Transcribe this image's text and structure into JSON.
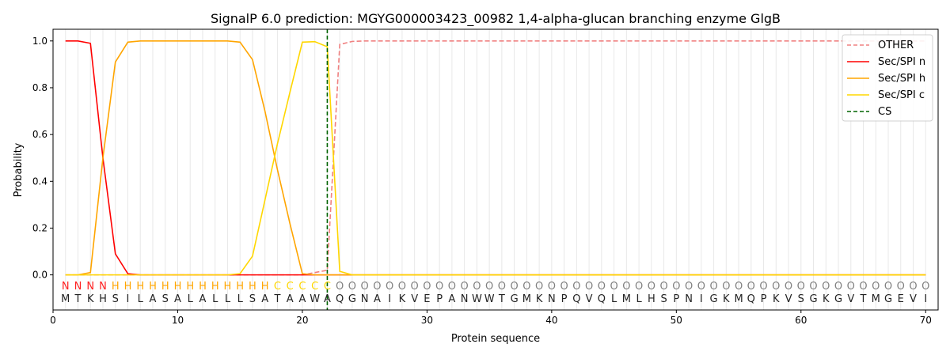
{
  "chart_data": {
    "type": "line",
    "title": "SignalP 6.0 prediction: MGYG000003423_00982 1,4-alpha-glucan branching enzyme GlgB",
    "xlabel": "Protein sequence",
    "ylabel": "Probability",
    "xlim": [
      0,
      71
    ],
    "ylim": [
      -0.15,
      1.05
    ],
    "xticks": [
      0,
      10,
      20,
      30,
      40,
      50,
      60,
      70
    ],
    "yticks": [
      "0.0",
      "0.2",
      "0.4",
      "0.6",
      "0.8",
      "1.0"
    ],
    "grid": "vertical lines at each residue",
    "legend_placement": "top-right",
    "sequence": [
      "M",
      "T",
      "K",
      "H",
      "S",
      "I",
      "L",
      "A",
      "S",
      "A",
      "L",
      "A",
      "L",
      "L",
      "L",
      "S",
      "A",
      "T",
      "A",
      "A",
      "W",
      "A",
      "Q",
      "G",
      "N",
      "A",
      "I",
      "K",
      "V",
      "E",
      "P",
      "A",
      "N",
      "W",
      "W",
      "T",
      "G",
      "M",
      "K",
      "N",
      "P",
      "Q",
      "V",
      "Q",
      "L",
      "M",
      "L",
      "H",
      "S",
      "P",
      "N",
      "I",
      "G",
      "K",
      "M",
      "Q",
      "P",
      "K",
      "V",
      "S",
      "G",
      "K",
      "G",
      "V",
      "T",
      "M",
      "G",
      "E",
      "V",
      "I"
    ],
    "region_labels": [
      "N",
      "N",
      "N",
      "N",
      "H",
      "H",
      "H",
      "H",
      "H",
      "H",
      "H",
      "H",
      "H",
      "H",
      "H",
      "H",
      "H",
      "C",
      "C",
      "C",
      "C",
      "C",
      "O",
      "O",
      "O",
      "O",
      "O",
      "O",
      "O",
      "O",
      "O",
      "O",
      "O",
      "O",
      "O",
      "O",
      "O",
      "O",
      "O",
      "O",
      "O",
      "O",
      "O",
      "O",
      "O",
      "O",
      "O",
      "O",
      "O",
      "O",
      "O",
      "O",
      "O",
      "O",
      "O",
      "O",
      "O",
      "O",
      "O",
      "O",
      "O",
      "O",
      "O",
      "O",
      "O",
      "O",
      "O",
      "O",
      "O",
      "O"
    ],
    "region_colors": {
      "N": "#ff2020",
      "H": "#ffa500",
      "C": "#ffd700",
      "O": "#808080"
    },
    "series": [
      {
        "name": "OTHER",
        "color": "#f08080",
        "dash": true,
        "values": [
          0,
          0,
          0,
          0,
          0,
          0,
          0,
          0,
          0,
          0,
          0,
          0,
          0,
          0,
          0,
          0,
          0,
          0,
          0,
          0,
          0.01,
          0.02,
          0.985,
          0.998,
          1,
          1,
          1,
          1,
          1,
          1,
          1,
          1,
          1,
          1,
          1,
          1,
          1,
          1,
          1,
          1,
          1,
          1,
          1,
          1,
          1,
          1,
          1,
          1,
          1,
          1,
          1,
          1,
          1,
          1,
          1,
          1,
          1,
          1,
          1,
          1,
          1,
          1,
          1,
          1,
          1,
          1,
          1,
          1,
          1,
          1
        ]
      },
      {
        "name": "Sec/SPI n",
        "color": "#ff0000",
        "values": [
          1,
          1,
          0.99,
          0.5,
          0.09,
          0.005,
          0,
          0,
          0,
          0,
          0,
          0,
          0,
          0,
          0,
          0,
          0,
          0,
          0,
          0,
          0,
          0,
          0,
          0,
          0,
          0,
          0,
          0,
          0,
          0,
          0,
          0,
          0,
          0,
          0,
          0,
          0,
          0,
          0,
          0,
          0,
          0,
          0,
          0,
          0,
          0,
          0,
          0,
          0,
          0,
          0,
          0,
          0,
          0,
          0,
          0,
          0,
          0,
          0,
          0,
          0,
          0,
          0,
          0,
          0,
          0,
          0,
          0,
          0,
          0
        ]
      },
      {
        "name": "Sec/SPI h",
        "color": "#ffa500",
        "values": [
          0,
          0,
          0.01,
          0.5,
          0.91,
          0.995,
          1,
          1,
          1,
          1,
          1,
          1,
          1,
          1,
          0.995,
          0.92,
          0.7,
          0.45,
          0.22,
          0.005,
          0,
          0,
          0,
          0,
          0,
          0,
          0,
          0,
          0,
          0,
          0,
          0,
          0,
          0,
          0,
          0,
          0,
          0,
          0,
          0,
          0,
          0,
          0,
          0,
          0,
          0,
          0,
          0,
          0,
          0,
          0,
          0,
          0,
          0,
          0,
          0,
          0,
          0,
          0,
          0,
          0,
          0,
          0,
          0,
          0,
          0,
          0,
          0,
          0,
          0
        ]
      },
      {
        "name": "Sec/SPI c",
        "color": "#ffd700",
        "values": [
          0,
          0,
          0,
          0,
          0,
          0,
          0,
          0,
          0,
          0,
          0,
          0,
          0,
          0,
          0.005,
          0.08,
          0.32,
          0.56,
          0.78,
          0.995,
          0.997,
          0.975,
          0.015,
          0,
          0,
          0,
          0,
          0,
          0,
          0,
          0,
          0,
          0,
          0,
          0,
          0,
          0,
          0,
          0,
          0,
          0,
          0,
          0,
          0,
          0,
          0,
          0,
          0,
          0,
          0,
          0,
          0,
          0,
          0,
          0,
          0,
          0,
          0,
          0,
          0,
          0,
          0,
          0,
          0,
          0,
          0,
          0,
          0,
          0,
          0
        ]
      }
    ],
    "cs": {
      "name": "CS",
      "x": 22,
      "color": "#006400"
    }
  }
}
